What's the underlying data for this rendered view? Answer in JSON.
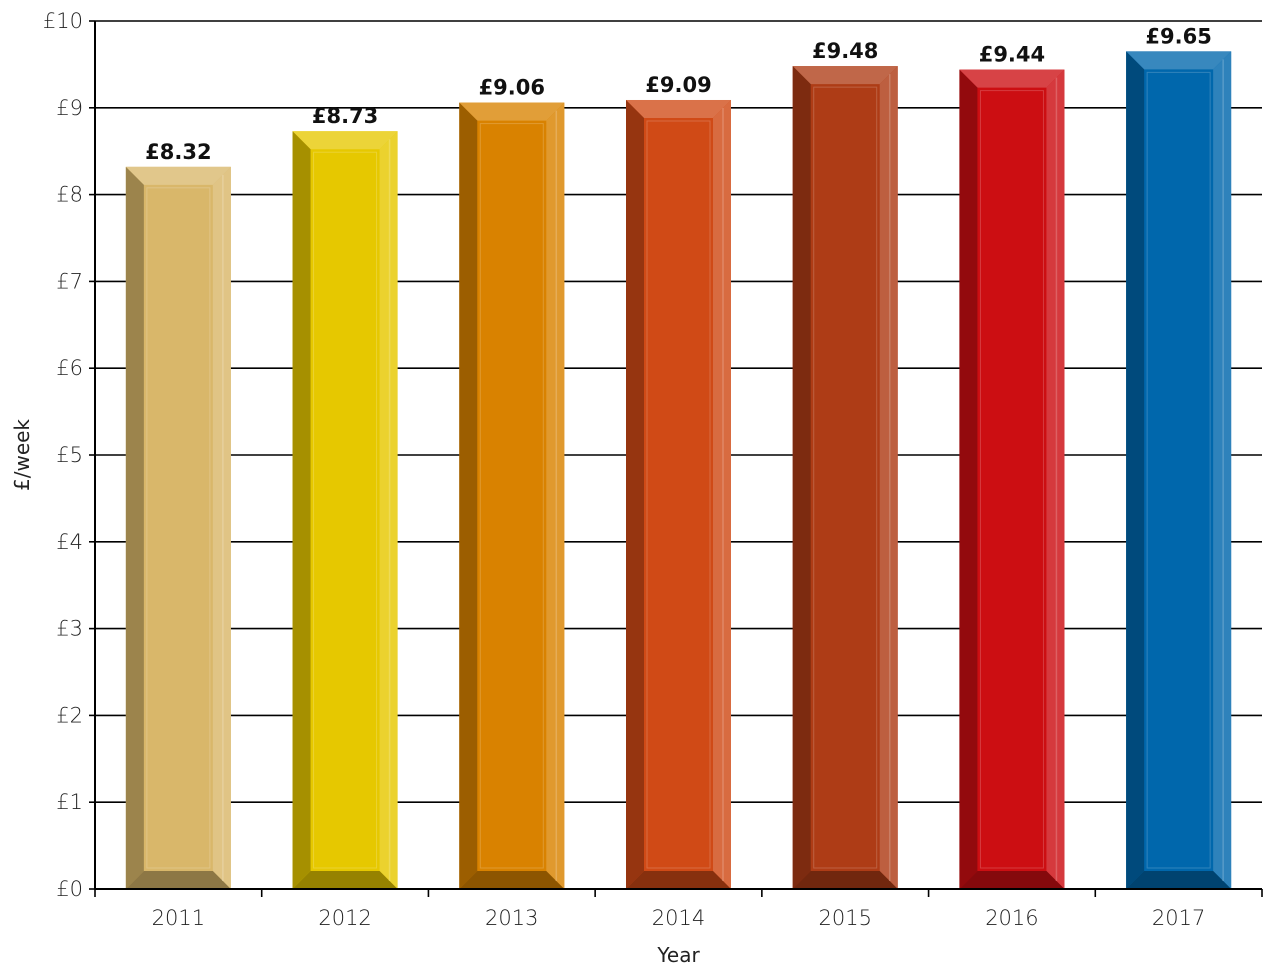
{
  "chart_data": {
    "type": "bar",
    "categories": [
      "2011",
      "2012",
      "2013",
      "2014",
      "2015",
      "2016",
      "2017"
    ],
    "values": [
      8.32,
      8.73,
      9.06,
      9.09,
      9.48,
      9.44,
      9.65
    ],
    "data_labels": [
      "£8.32",
      "£8.73",
      "£9.06",
      "£9.09",
      "£9.48",
      "£9.44",
      "£9.65"
    ],
    "colors": [
      "#D9B76A",
      "#E6C800",
      "#D98200",
      "#D04A16",
      "#AE3C16",
      "#CC0E12",
      "#0067AC"
    ],
    "xlabel": "Year",
    "ylabel": "£/week",
    "ylim": [
      0,
      10
    ],
    "yticks": [
      0,
      1,
      2,
      3,
      4,
      5,
      6,
      7,
      8,
      9,
      10
    ],
    "ytick_labels": [
      "£0",
      "£1",
      "£2",
      "£3",
      "£4",
      "£5",
      "£6",
      "£7",
      "£8",
      "£9",
      "£10"
    ],
    "grid": true,
    "legend": "none"
  }
}
